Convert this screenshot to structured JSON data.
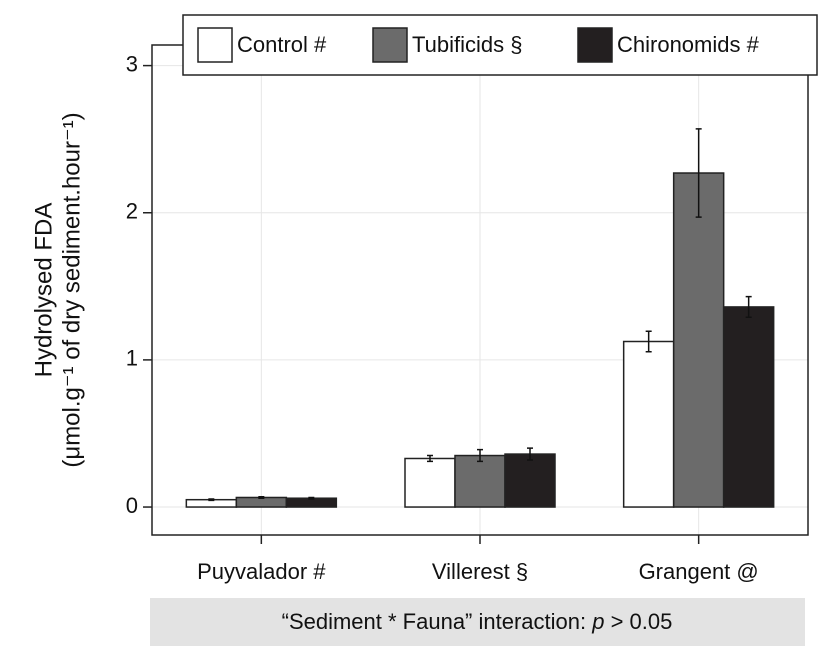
{
  "chart_data": {
    "type": "bar",
    "y_label": [
      "Hydrolysed FDA",
      "(μmol.g⁻¹ of dry sediment.hour⁻¹)"
    ],
    "categories": [
      "Puyvalador #",
      "Villerest §",
      "Grangent @"
    ],
    "series": [
      {
        "name": "Control #",
        "color": "#ffffff",
        "values": [
          0.05,
          0.33,
          1.125
        ],
        "errors": [
          0.005,
          0.02,
          0.07
        ]
      },
      {
        "name": "Tubificids §",
        "color": "#6b6b6b",
        "values": [
          0.065,
          0.35,
          2.27
        ],
        "errors": [
          0.005,
          0.04,
          0.3
        ]
      },
      {
        "name": "Chironomids #",
        "color": "#231f20",
        "values": [
          0.06,
          0.36,
          1.36
        ],
        "errors": [
          0.005,
          0.04,
          0.07
        ]
      }
    ],
    "ylim": [
      -0.19,
      3.14
    ],
    "yticks": [
      0,
      1,
      2,
      3
    ],
    "grid": true,
    "note": [
      "“Sediment * Fauna” interaction: ",
      "p",
      " > 0.05"
    ]
  }
}
